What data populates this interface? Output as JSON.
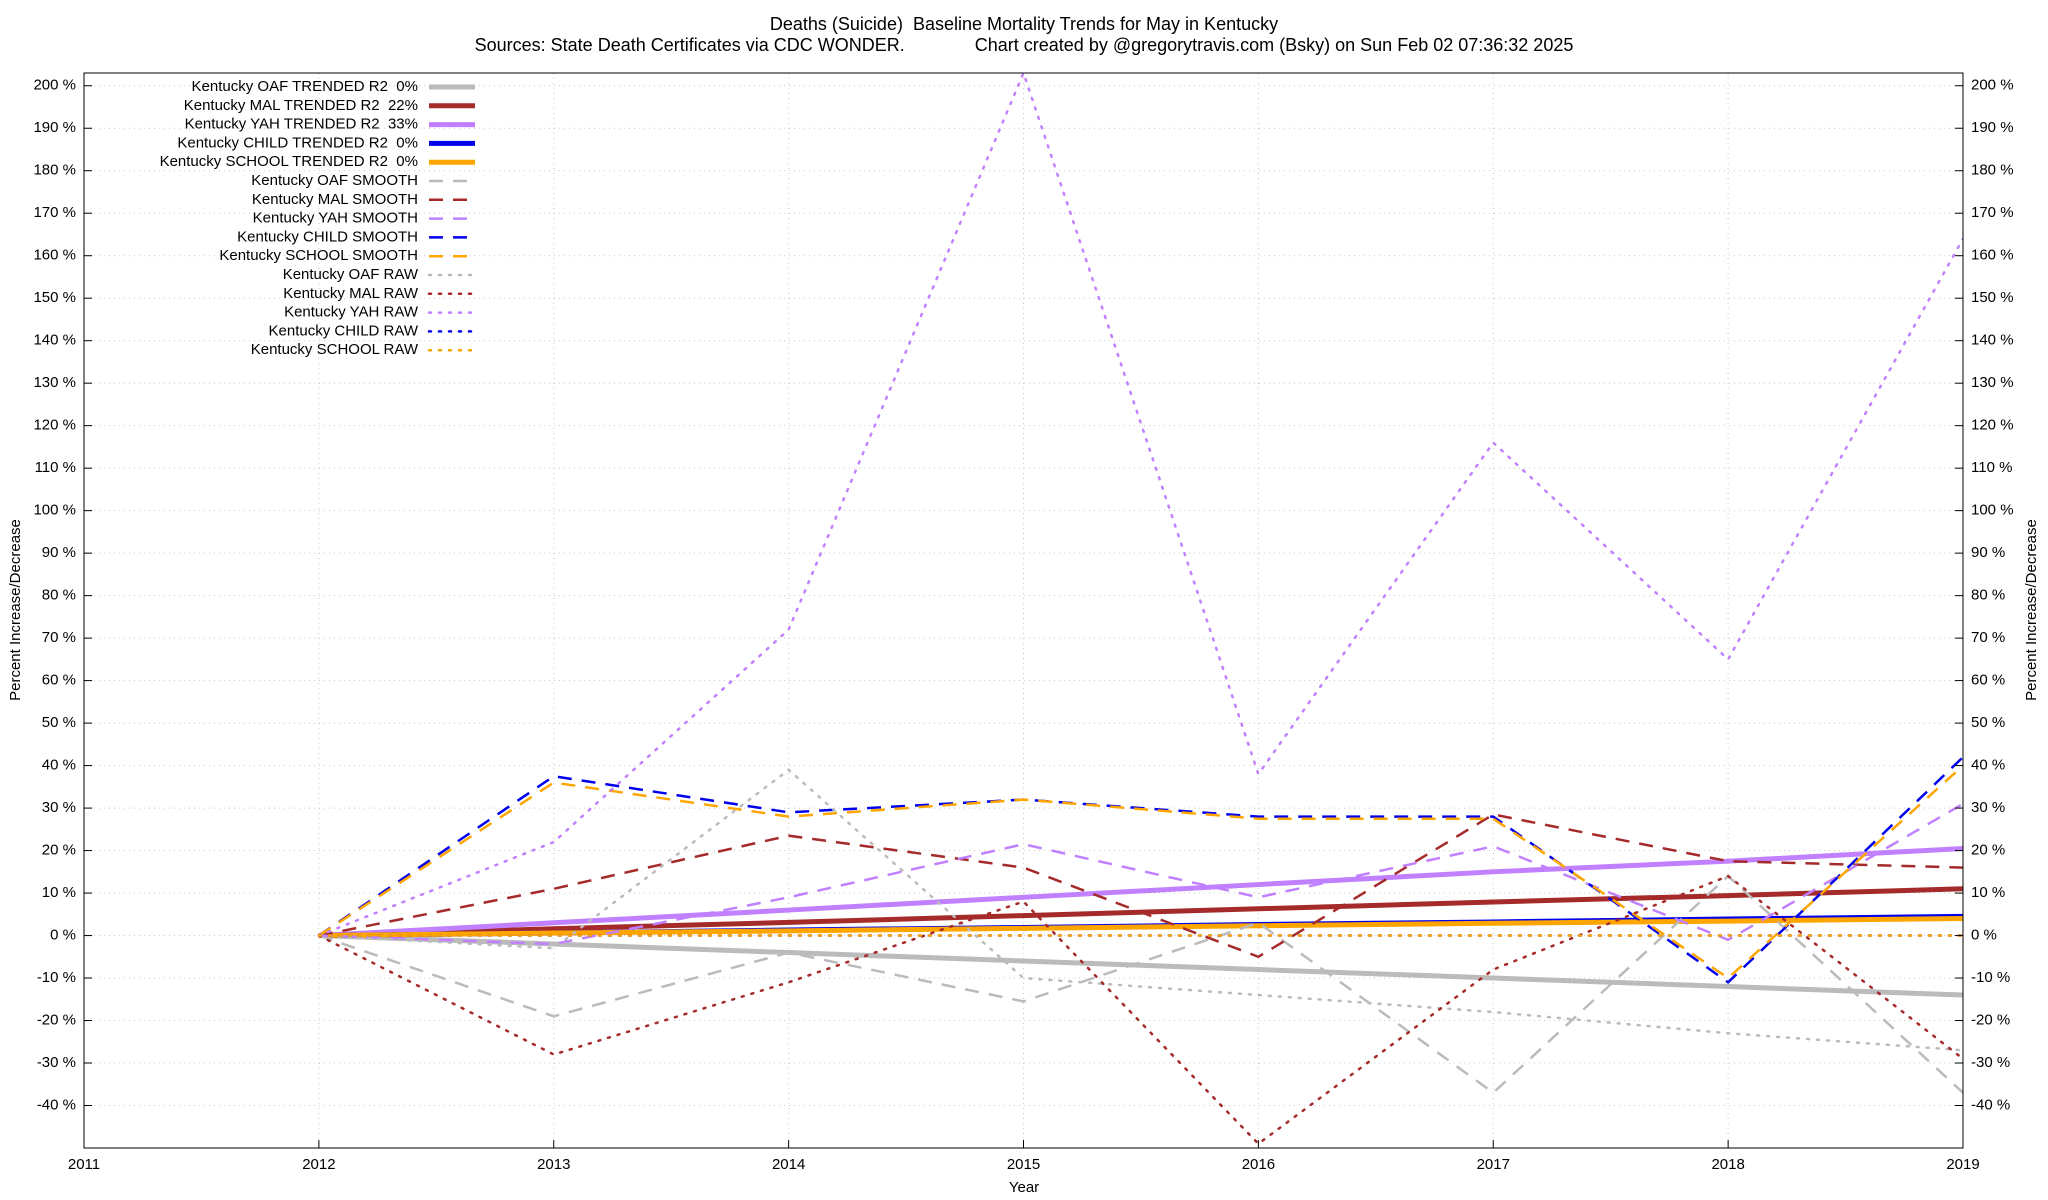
{
  "chart_data": {
    "type": "line",
    "title": "Deaths (Suicide)  Baseline Mortality Trends for May in Kentucky",
    "subtitle": "Sources: State Death Certificates via CDC WONDER.              Chart created by @gregorytravis.com (Bsky) on Sun Feb 02 07:36:32 2025",
    "x_label": "Year",
    "y_label": "Percent Increase/Decrease",
    "y2_label": "Percent Increase/Decrease",
    "x": [
      2012,
      2013,
      2014,
      2015,
      2016,
      2017,
      2018,
      2019
    ],
    "xlim": [
      2011,
      2019
    ],
    "xticks": [
      2011,
      2012,
      2013,
      2014,
      2015,
      2016,
      2017,
      2018,
      2019
    ],
    "ylim": [
      -50,
      203
    ],
    "yticks": [
      {
        "value": -40,
        "label": "-40 %"
      },
      {
        "value": -30,
        "label": "-30 %"
      },
      {
        "value": -20,
        "label": "-20 %"
      },
      {
        "value": -10,
        "label": "-10 %"
      },
      {
        "value": 0,
        "label": "0 %"
      },
      {
        "value": 10,
        "label": "10 %"
      },
      {
        "value": 20,
        "label": "20 %"
      },
      {
        "value": 30,
        "label": "30 %"
      },
      {
        "value": 40,
        "label": "40 %"
      },
      {
        "value": 50,
        "label": "50 %"
      },
      {
        "value": 60,
        "label": "60 %"
      },
      {
        "value": 70,
        "label": "70 %"
      },
      {
        "value": 80,
        "label": "80 %"
      },
      {
        "value": 90,
        "label": "90 %"
      },
      {
        "value": 100,
        "label": "100 %"
      },
      {
        "value": 110,
        "label": "110 %"
      },
      {
        "value": 120,
        "label": "120 %"
      },
      {
        "value": 130,
        "label": "130 %"
      },
      {
        "value": 140,
        "label": "140 %"
      },
      {
        "value": 150,
        "label": "150 %"
      },
      {
        "value": 160,
        "label": "160 %"
      },
      {
        "value": 170,
        "label": "170 %"
      },
      {
        "value": 180,
        "label": "180 %"
      },
      {
        "value": 190,
        "label": "190 %"
      },
      {
        "value": 200,
        "label": "200 %"
      }
    ],
    "y2lim": [
      -50,
      203
    ],
    "y2ticks": [
      {
        "value": -40,
        "label": "-40 %"
      },
      {
        "value": -30,
        "label": "-30 %"
      },
      {
        "value": -20,
        "label": "-20 %"
      },
      {
        "value": -10,
        "label": "-10 %"
      },
      {
        "value": 0,
        "label": "0 %"
      },
      {
        "value": 10,
        "label": "10 %"
      },
      {
        "value": 20,
        "label": "20 %"
      },
      {
        "value": 30,
        "label": "30 %"
      },
      {
        "value": 40,
        "label": "40 %"
      },
      {
        "value": 50,
        "label": "50 %"
      },
      {
        "value": 60,
        "label": "60 %"
      },
      {
        "value": 70,
        "label": "70 %"
      },
      {
        "value": 80,
        "label": "80 %"
      },
      {
        "value": 90,
        "label": "90 %"
      },
      {
        "value": 100,
        "label": "100 %"
      },
      {
        "value": 110,
        "label": "110 %"
      },
      {
        "value": 120,
        "label": "120 %"
      },
      {
        "value": 130,
        "label": "130 %"
      },
      {
        "value": 140,
        "label": "140 %"
      },
      {
        "value": 150,
        "label": "150 %"
      },
      {
        "value": 160,
        "label": "160 %"
      },
      {
        "value": 170,
        "label": "170 %"
      },
      {
        "value": 180,
        "label": "180 %"
      },
      {
        "value": 190,
        "label": "190 %"
      },
      {
        "value": 200,
        "label": "200 %"
      }
    ],
    "grid": true,
    "legend": "top-left",
    "series": [
      {
        "name": "Kentucky OAF TRENDED R2  0%",
        "color": "#bbbbbb",
        "style": "solid",
        "values": [
          0,
          -2,
          -4,
          -6,
          -8,
          -10,
          -12,
          -14
        ]
      },
      {
        "name": "Kentucky MAL TRENDED R2  22%",
        "color": "#a52a2a",
        "style": "solid",
        "values": [
          0,
          1.6,
          3.1,
          4.7,
          6.3,
          7.9,
          9.4,
          11
        ]
      },
      {
        "name": "Kentucky YAH TRENDED R2  33%",
        "color": "#c080ff",
        "style": "solid",
        "values": [
          0,
          3,
          6,
          9,
          12,
          15,
          17.5,
          20.5
        ]
      },
      {
        "name": "Kentucky CHILD TRENDED R2  0%",
        "color": "#0000ee",
        "style": "solid",
        "values": [
          0,
          0.6,
          1.3,
          1.9,
          2.6,
          3.2,
          3.9,
          4.5
        ]
      },
      {
        "name": "Kentucky SCHOOL TRENDED R2  0%",
        "color": "#ffa500",
        "style": "solid",
        "values": [
          0,
          0.6,
          1.1,
          1.7,
          2.3,
          2.9,
          3.4,
          4
        ]
      },
      {
        "name": "Kentucky OAF SMOOTH",
        "color": "#bbbbbb",
        "style": "dashed",
        "values": [
          0,
          -19,
          -4,
          -15.5,
          3,
          -37,
          14,
          -37
        ]
      },
      {
        "name": "Kentucky MAL SMOOTH",
        "color": "#a52a2a",
        "style": "dashed",
        "values": [
          0,
          11,
          23.5,
          16,
          -5,
          28.5,
          17.5,
          16
        ]
      },
      {
        "name": "Kentucky YAH SMOOTH",
        "color": "#c080ff",
        "style": "dashed",
        "values": [
          0,
          -2,
          9,
          21.5,
          9,
          21,
          -1,
          31
        ]
      },
      {
        "name": "Kentucky CHILD SMOOTH",
        "color": "#0000ee",
        "style": "dashed",
        "values": [
          0,
          37.5,
          29,
          32,
          28,
          28,
          -11,
          42
        ]
      },
      {
        "name": "Kentucky SCHOOL SMOOTH",
        "color": "#ffa500",
        "style": "dashed",
        "values": [
          0,
          36,
          28,
          32,
          27.5,
          27.5,
          -10,
          40
        ]
      },
      {
        "name": "Kentucky OAF RAW",
        "color": "#bbbbbb",
        "style": "dotted",
        "values": [
          0,
          -3,
          39,
          -10,
          -14,
          -18,
          -23,
          -27
        ]
      },
      {
        "name": "Kentucky MAL RAW",
        "color": "#a52a2a",
        "style": "dotted",
        "values": [
          0,
          -28,
          -11,
          8,
          -49,
          -8,
          14,
          -29
        ]
      },
      {
        "name": "Kentucky YAH RAW",
        "color": "#c080ff",
        "style": "dotted",
        "values": [
          0,
          22,
          72,
          203,
          38,
          116,
          65,
          164
        ]
      },
      {
        "name": "Kentucky CHILD RAW",
        "color": "#0000ee",
        "style": "dotted",
        "values": [
          0,
          0,
          0,
          0,
          0,
          0,
          0,
          0
        ]
      },
      {
        "name": "Kentucky SCHOOL RAW",
        "color": "#ffa500",
        "style": "dotted",
        "values": [
          0,
          0,
          0,
          0,
          0,
          0,
          0,
          0
        ]
      }
    ]
  }
}
